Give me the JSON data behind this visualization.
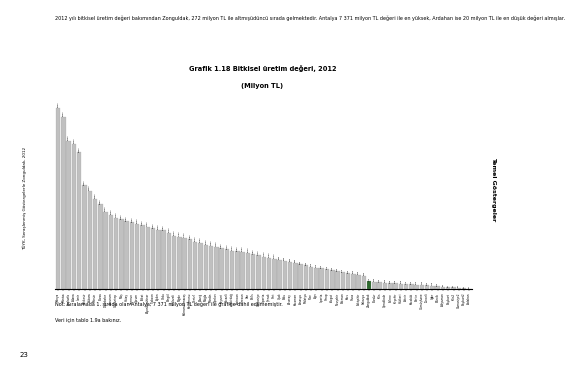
{
  "title_line1": "Grafik 1.18 Bitkisel üretim değeri, 2012",
  "title_line2": "(Milyon TL)",
  "paragraph_text": "2012 yılı bitkisel üretim değeri bakımından Zonguldak, 272 milyon TL ile altmışüdüncü sırada gelmektedir. Antalya 7 371 milyon TL değeri ile en yüksek, Ardahan ise 20 milyon TL ile en düşük değeri almışlar.",
  "note_line1": "Not: Sıralamada 1. sırada olan Antalya, 7 371 milyon TL değeri ile grafiğe dahil edilmemiştir.",
  "note_line2": "Veri için tablo 1.9a bakınız.",
  "left_label": "TÜYK, Seraşlenmiş Göstergelerle Zonguldak, 2012",
  "page_number": "23",
  "right_label": "Temel Göstergeler",
  "highlight_province": "Zonguldak",
  "highlight_color": "#2d6a2d",
  "bar_color": "#c0c0c0",
  "bar_edge_color": "#999999",
  "background_color": "#ffffff",
  "right_sidebar_color": "#bfcfaa",
  "provinces": [
    "Konya",
    "Manisa",
    "Şanlıurfa",
    "Adana",
    "İzmir",
    "Balıkesir",
    "Ankara",
    "Mersin",
    "Bursa",
    "Diyarbakır",
    "Erzurum",
    "Gaziantep",
    "Muş",
    "Hatay",
    "Samsun",
    "Çorum",
    "Tokat",
    "Afyonkarahisar",
    "Trabzon",
    "Aydın",
    "Ordu",
    "Bingöl",
    "Kırklareli",
    "Niğde",
    "Kahramanmaraş",
    "Kastamonu",
    "Denizli",
    "Elazığ",
    "Muğla",
    "Mardin",
    "Çankırı",
    "Kayseri",
    "Kocaeli",
    "Tekirdağ",
    "Erzincan",
    "Giresun",
    "Van",
    "Bitlis",
    "Osmaniye",
    "İsparta",
    "Şırnak",
    "Siirt",
    "Uşak",
    "Bolu",
    "Aksaray",
    "Karaman",
    "Amasya",
    "Malatya",
    "Rize",
    "Ağrı",
    "Isparta",
    "Sinop",
    "Yozgat",
    "Nevşehir",
    "Batman",
    "Kars",
    "Sivas",
    "Eskişehir",
    "Sakarya",
    "Zonguldak",
    "Burdur",
    "Kilis",
    "Çanakkale",
    "Edirne",
    "Kırşehir",
    "Hakkari",
    "Artvin",
    "Karabük",
    "Bartın",
    "Gümüşhane",
    "Tunceli",
    "Iğdır",
    "Bilecik",
    "Adiyaman",
    "Bayburt",
    "Kilis2",
    "Osmaniye2",
    "Bayburt2",
    "Ardahan"
  ],
  "values": [
    6100,
    5800,
    5000,
    4900,
    4600,
    3500,
    3300,
    3050,
    2850,
    2600,
    2500,
    2400,
    2350,
    2280,
    2250,
    2200,
    2150,
    2100,
    2050,
    2000,
    1980,
    1900,
    1800,
    1760,
    1720,
    1680,
    1600,
    1560,
    1500,
    1460,
    1420,
    1380,
    1340,
    1300,
    1280,
    1250,
    1220,
    1180,
    1140,
    1100,
    1060,
    1020,
    980,
    950,
    920,
    880,
    840,
    800,
    760,
    720,
    700,
    670,
    640,
    600,
    570,
    540,
    510,
    480,
    450,
    272,
    260,
    240,
    220,
    205,
    195,
    185,
    170,
    160,
    150,
    140,
    130,
    115,
    100,
    85,
    70,
    60,
    45,
    30,
    20
  ],
  "ylim": [
    0,
    6500
  ]
}
